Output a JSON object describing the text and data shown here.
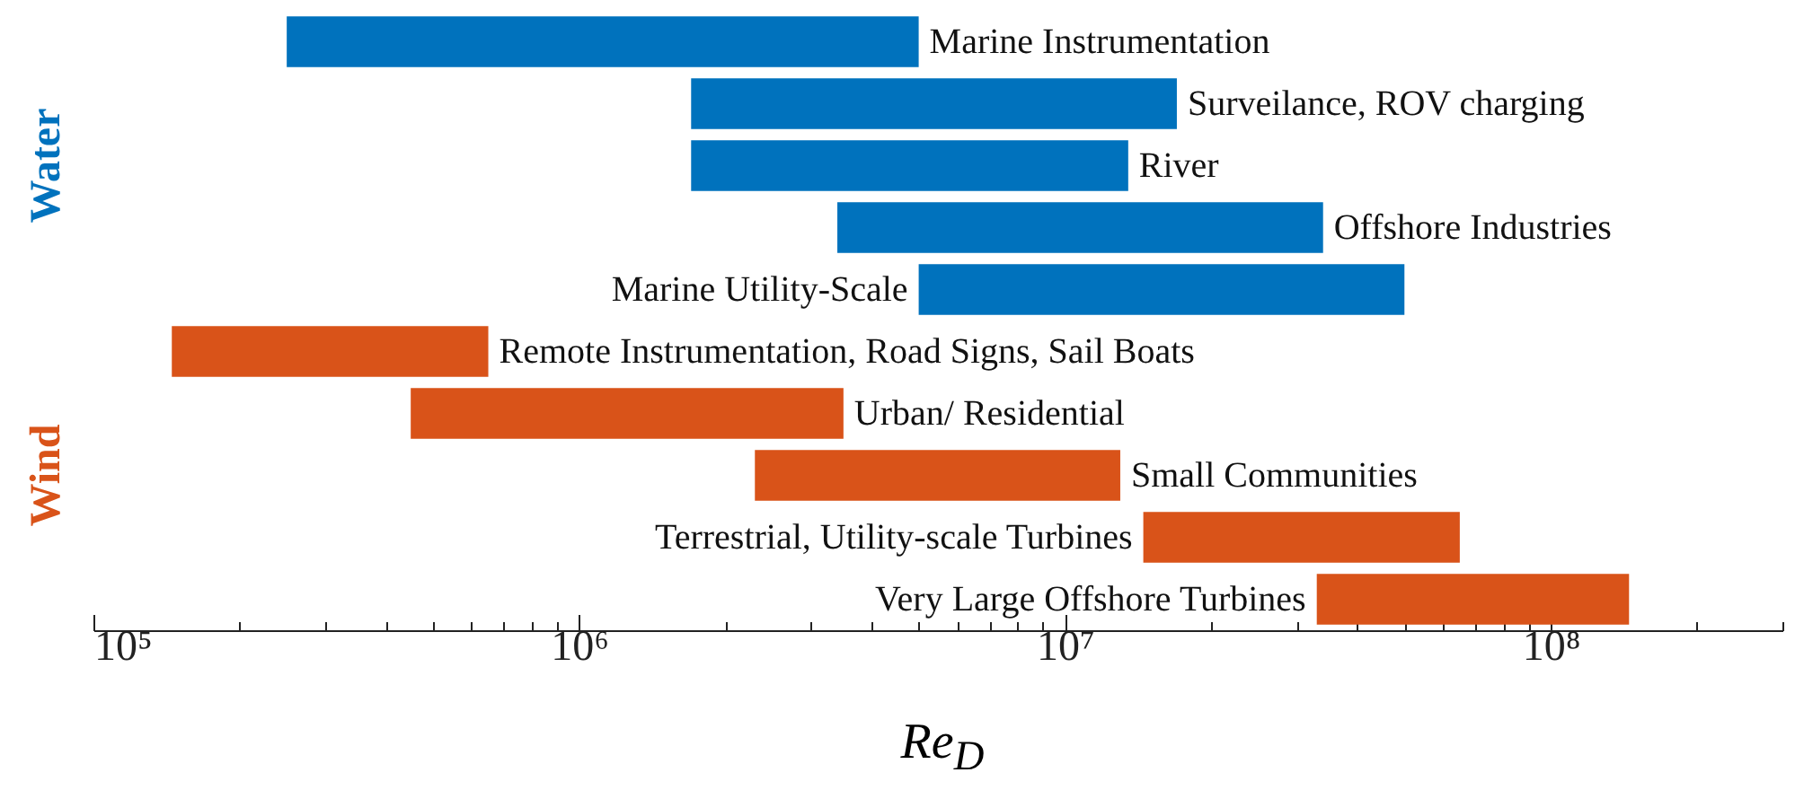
{
  "chart_data": {
    "type": "bar",
    "orientation": "horizontal",
    "xlabel": "Re$_{D}$",
    "log": "x",
    "categories": [
      "Marine Instrumentation",
      "Surveilance, ROV charging",
      "River",
      "Offshore Industries",
      "Marine Utility-Scale",
      "Remote Instrumentation, Road Signs, Sail Boats",
      "Urban/ Residential",
      "Small Communities",
      "Terrestrial, Utility-scale Turbines",
      "Very Large Offshore Turbines"
    ],
    "base": [
      250000,
      1700000,
      1700000,
      3400000,
      5000000,
      145000,
      450000,
      2300000,
      14500000,
      33000000
    ],
    "values": [
      4750000,
      15300000,
      11800000,
      30600000,
      45000000,
      505000,
      3050000,
      10700000,
      50500000,
      112000000
    ],
    "colors": [
      "#0072bd",
      "#0072bd",
      "#0072bd",
      "#0072bd",
      "#0072bd",
      "#d95319",
      "#d95319",
      "#d95319",
      "#d95319",
      "#d95319"
    ],
    "annotations": [
      "Water",
      "Wind"
    ],
    "xlim": [
      100000,
      300000000
    ],
    "xticks": [
      {
        "value": 100000,
        "label": "10⁵"
      },
      {
        "value": 200000,
        "label": null
      },
      {
        "value": 300000,
        "label": null
      },
      {
        "value": 400000,
        "label": null
      },
      {
        "value": 500000,
        "label": null
      },
      {
        "value": 600000,
        "label": null
      },
      {
        "value": 700000,
        "label": null
      },
      {
        "value": 800000,
        "label": null
      },
      {
        "value": 900000,
        "label": null
      },
      {
        "value": 1000000,
        "label": "10⁶"
      },
      {
        "value": 2000000,
        "label": null
      },
      {
        "value": 3000000,
        "label": null
      },
      {
        "value": 4000000,
        "label": null
      },
      {
        "value": 5000000,
        "label": null
      },
      {
        "value": 6000000,
        "label": null
      },
      {
        "value": 7000000,
        "label": null
      },
      {
        "value": 8000000,
        "label": null
      },
      {
        "value": 9000000,
        "label": null
      },
      {
        "value": 10000000,
        "label": "10⁷"
      },
      {
        "value": 20000000,
        "label": null
      },
      {
        "value": 30000000,
        "label": null
      },
      {
        "value": 40000000,
        "label": null
      },
      {
        "value": 50000000,
        "label": null
      },
      {
        "value": 60000000,
        "label": null
      },
      {
        "value": 70000000,
        "label": null
      },
      {
        "value": 80000000,
        "label": null
      },
      {
        "value": 90000000,
        "label": null
      },
      {
        "value": 100000000,
        "label": "10⁸"
      },
      {
        "value": 200000000,
        "label": null
      },
      {
        "value": 300000000,
        "label": null
      }
    ],
    "grid": false
  }
}
